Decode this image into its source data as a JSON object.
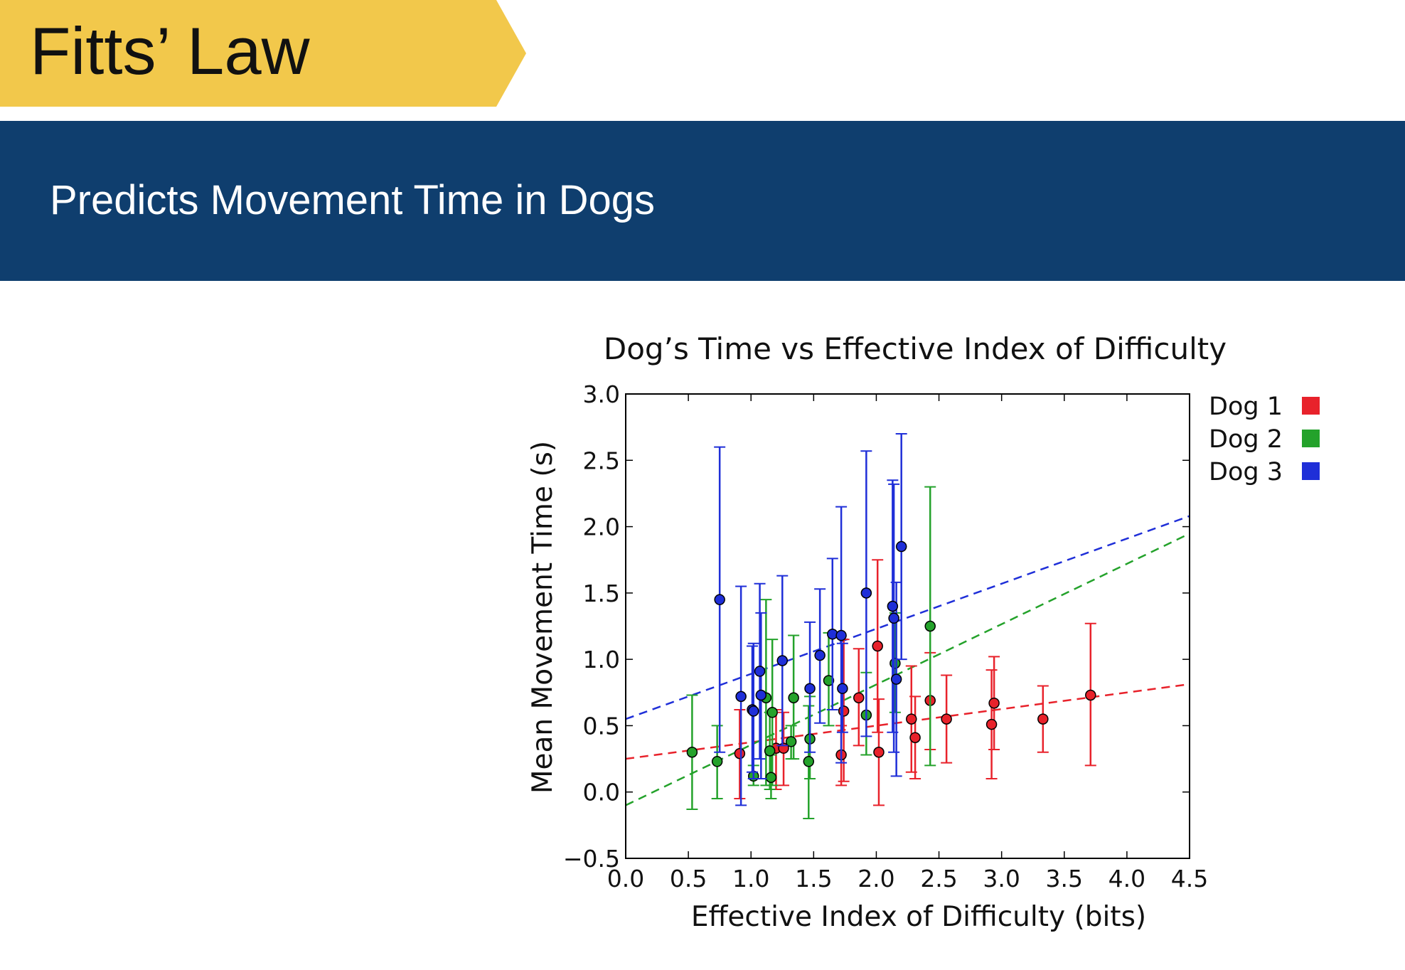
{
  "slide": {
    "title": "Fitts’ Law",
    "subtitle": "Predicts Movement Time in Dogs",
    "colors": {
      "title_tab": "#f2c84b",
      "subtitle_band": "#0f3e6e",
      "background": "#ffffff"
    }
  },
  "chart_data": {
    "type": "scatter",
    "title": "Dog’s Time vs Effective Index of Difficulty",
    "xlabel": "Effective Index of Difficulty (bits)",
    "ylabel": "Mean Movement Time (s)",
    "xlim": [
      0.0,
      4.5
    ],
    "ylim": [
      -0.5,
      3.0
    ],
    "xticks": [
      "0.0",
      "0.5",
      "1.0",
      "1.5",
      "2.0",
      "2.5",
      "3.0",
      "3.5",
      "4.0",
      "4.5"
    ],
    "yticks": [
      "−0.5",
      "0.0",
      "0.5",
      "1.0",
      "1.5",
      "2.0",
      "2.5",
      "3.0"
    ],
    "grid": false,
    "legend_position": "outside-right-top",
    "series": [
      {
        "name": "Dog 1",
        "color": "#e8222b",
        "fit": {
          "intercept": 0.25,
          "slope": 0.125
        },
        "points": [
          {
            "x": 0.91,
            "y": 0.29,
            "lo": -0.05,
            "hi": 0.62
          },
          {
            "x": 1.2,
            "y": 0.33,
            "lo": 0.02,
            "hi": 0.62
          },
          {
            "x": 1.26,
            "y": 0.33,
            "lo": 0.05,
            "hi": 0.6
          },
          {
            "x": 1.72,
            "y": 0.28,
            "lo": 0.05,
            "hi": 0.5
          },
          {
            "x": 1.74,
            "y": 0.61,
            "lo": 0.08,
            "hi": 1.15
          },
          {
            "x": 1.86,
            "y": 0.71,
            "lo": 0.35,
            "hi": 1.08
          },
          {
            "x": 2.01,
            "y": 1.1,
            "lo": 0.45,
            "hi": 1.75
          },
          {
            "x": 2.02,
            "y": 0.3,
            "lo": -0.1,
            "hi": 0.7
          },
          {
            "x": 2.28,
            "y": 0.55,
            "lo": 0.15,
            "hi": 0.95
          },
          {
            "x": 2.31,
            "y": 0.41,
            "lo": 0.1,
            "hi": 0.72
          },
          {
            "x": 2.43,
            "y": 0.69,
            "lo": 0.32,
            "hi": 1.05
          },
          {
            "x": 2.56,
            "y": 0.55,
            "lo": 0.22,
            "hi": 0.88
          },
          {
            "x": 2.92,
            "y": 0.51,
            "lo": 0.1,
            "hi": 0.92
          },
          {
            "x": 2.94,
            "y": 0.67,
            "lo": 0.32,
            "hi": 1.02
          },
          {
            "x": 3.33,
            "y": 0.55,
            "lo": 0.3,
            "hi": 0.8
          },
          {
            "x": 3.71,
            "y": 0.73,
            "lo": 0.2,
            "hi": 1.27
          }
        ]
      },
      {
        "name": "Dog 2",
        "color": "#24a22b",
        "fit": {
          "intercept": -0.1,
          "slope": 0.455
        },
        "points": [
          {
            "x": 0.53,
            "y": 0.3,
            "lo": -0.13,
            "hi": 0.73
          },
          {
            "x": 0.73,
            "y": 0.23,
            "lo": -0.05,
            "hi": 0.5
          },
          {
            "x": 1.02,
            "y": 0.12,
            "lo": 0.05,
            "hi": 0.2
          },
          {
            "x": 1.12,
            "y": 0.71,
            "lo": 0.05,
            "hi": 1.45
          },
          {
            "x": 1.15,
            "y": 0.31,
            "lo": 0.02,
            "hi": 0.6
          },
          {
            "x": 1.16,
            "y": 0.11,
            "lo": -0.05,
            "hi": 0.28
          },
          {
            "x": 1.17,
            "y": 0.6,
            "lo": 0.05,
            "hi": 1.15
          },
          {
            "x": 1.32,
            "y": 0.38,
            "lo": 0.25,
            "hi": 0.5
          },
          {
            "x": 1.34,
            "y": 0.71,
            "lo": 0.25,
            "hi": 1.18
          },
          {
            "x": 1.46,
            "y": 0.23,
            "lo": -0.2,
            "hi": 0.65
          },
          {
            "x": 1.47,
            "y": 0.4,
            "lo": 0.1,
            "hi": 0.72
          },
          {
            "x": 1.62,
            "y": 0.84,
            "lo": 0.5,
            "hi": 1.2
          },
          {
            "x": 1.92,
            "y": 0.58,
            "lo": 0.28,
            "hi": 0.9
          },
          {
            "x": 2.15,
            "y": 0.97,
            "lo": 0.6,
            "hi": 1.35
          },
          {
            "x": 2.43,
            "y": 1.25,
            "lo": 0.2,
            "hi": 2.3
          }
        ]
      },
      {
        "name": "Dog 3",
        "color": "#1f2fd8",
        "fit": {
          "intercept": 0.55,
          "slope": 0.34
        },
        "points": [
          {
            "x": 0.75,
            "y": 1.45,
            "lo": 0.3,
            "hi": 2.6
          },
          {
            "x": 0.92,
            "y": 0.72,
            "lo": -0.1,
            "hi": 1.55
          },
          {
            "x": 1.01,
            "y": 0.62,
            "lo": 0.15,
            "hi": 1.1
          },
          {
            "x": 1.02,
            "y": 0.61,
            "lo": 0.1,
            "hi": 1.12
          },
          {
            "x": 1.07,
            "y": 0.91,
            "lo": 0.25,
            "hi": 1.57
          },
          {
            "x": 1.08,
            "y": 0.73,
            "lo": 0.1,
            "hi": 1.35
          },
          {
            "x": 1.25,
            "y": 0.99,
            "lo": 0.35,
            "hi": 1.63
          },
          {
            "x": 1.47,
            "y": 0.78,
            "lo": 0.3,
            "hi": 1.28
          },
          {
            "x": 1.55,
            "y": 1.03,
            "lo": 0.52,
            "hi": 1.53
          },
          {
            "x": 1.65,
            "y": 1.19,
            "lo": 0.62,
            "hi": 1.76
          },
          {
            "x": 1.72,
            "y": 1.18,
            "lo": 0.22,
            "hi": 2.15
          },
          {
            "x": 1.73,
            "y": 0.78,
            "lo": 0.45,
            "hi": 1.12
          },
          {
            "x": 1.92,
            "y": 1.5,
            "lo": 0.42,
            "hi": 2.57
          },
          {
            "x": 2.13,
            "y": 1.4,
            "lo": 0.45,
            "hi": 2.35
          },
          {
            "x": 2.14,
            "y": 1.31,
            "lo": 0.3,
            "hi": 2.32
          },
          {
            "x": 2.16,
            "y": 0.85,
            "lo": 0.12,
            "hi": 1.58
          },
          {
            "x": 2.2,
            "y": 1.85,
            "lo": 1.0,
            "hi": 2.7
          }
        ]
      }
    ]
  }
}
